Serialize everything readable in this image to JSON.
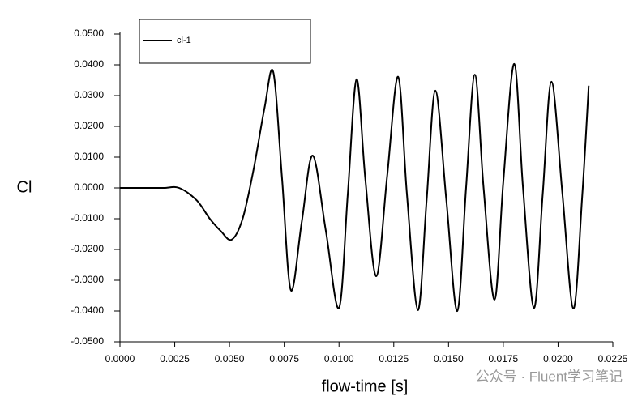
{
  "chart_data": {
    "type": "line",
    "x_label": "flow-time [s]",
    "y_label": "Cl",
    "watermark": "公众号 · Fluent学习笔记",
    "legend": "top-left",
    "x": [
      0,
      0.001,
      0.002,
      0.0027,
      0.0035,
      0.0041,
      0.0046,
      0.0051,
      0.0056,
      0.0061,
      0.0066,
      0.007,
      0.0074,
      0.0078,
      0.0083,
      0.0088,
      0.0094,
      0.01,
      0.0104,
      0.0108,
      0.0112,
      0.0117,
      0.0122,
      0.0127,
      0.0131,
      0.0136,
      0.014,
      0.0144,
      0.0149,
      0.0154,
      0.0158,
      0.0162,
      0.0166,
      0.0171,
      0.0175,
      0.018,
      0.0184,
      0.0189,
      0.0193,
      0.0197,
      0.0202,
      0.0207,
      0.0211,
      0.0214
    ],
    "series": [
      {
        "name": "cl-1",
        "color": "#000000",
        "values": [
          0,
          0,
          0,
          0,
          -0.004,
          -0.01,
          -0.014,
          -0.0168,
          -0.01,
          0.006,
          0.026,
          0.0376,
          0.003,
          -0.0332,
          -0.011,
          0.0105,
          -0.014,
          -0.039,
          -0.002,
          0.0353,
          0.003,
          -0.0287,
          0.004,
          0.0361,
          -0.002,
          -0.0397,
          -0.004,
          0.0316,
          -0.004,
          -0.04,
          0.0,
          0.0368,
          0.0,
          -0.0363,
          0.002,
          0.0403,
          0.0,
          -0.039,
          -0.002,
          0.0345,
          -0.002,
          -0.0392,
          -0.003,
          0.0332
        ]
      }
    ],
    "xlim": [
      0,
      0.0225
    ],
    "xticks": [
      {
        "value": 0,
        "label": "0.0000"
      },
      {
        "value": 0.0025,
        "label": "0.0025"
      },
      {
        "value": 0.005,
        "label": "0.0050"
      },
      {
        "value": 0.0075,
        "label": "0.0075"
      },
      {
        "value": 0.01,
        "label": "0.0100"
      },
      {
        "value": 0.0125,
        "label": "0.0125"
      },
      {
        "value": 0.015,
        "label": "0.0150"
      },
      {
        "value": 0.0175,
        "label": "0.0175"
      },
      {
        "value": 0.02,
        "label": "0.0200"
      },
      {
        "value": 0.0225,
        "label": "0.0225"
      }
    ],
    "ylim": [
      -0.05,
      0.05
    ],
    "yticks": [
      {
        "value": -0.05,
        "label": "-0.0500"
      },
      {
        "value": -0.04,
        "label": "-0.0400"
      },
      {
        "value": -0.03,
        "label": "-0.0300"
      },
      {
        "value": -0.02,
        "label": "-0.0200"
      },
      {
        "value": -0.01,
        "label": "-0.0100"
      },
      {
        "value": 0,
        "label": "0.0000"
      },
      {
        "value": 0.01,
        "label": "0.0100"
      },
      {
        "value": 0.02,
        "label": "0.0200"
      },
      {
        "value": 0.03,
        "label": "0.0300"
      },
      {
        "value": 0.04,
        "label": "0.0400"
      },
      {
        "value": 0.05,
        "label": "0.0500"
      }
    ]
  }
}
